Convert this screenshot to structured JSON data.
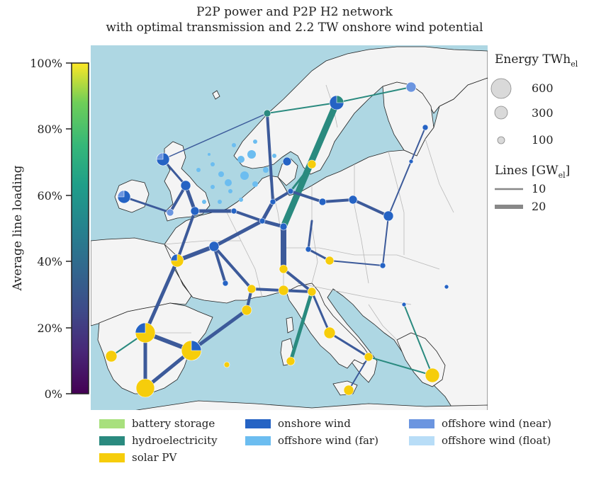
{
  "title": {
    "line1": "P2P power and P2P H2 network",
    "line2": "with optimal transmission and 2.2 TW onshore wind potential"
  },
  "colorbar": {
    "label": "Average line loading",
    "ticks": [
      "0%",
      "20%",
      "40%",
      "60%",
      "80%",
      "100%"
    ],
    "colormap": "viridis"
  },
  "size_legend": {
    "title": "Energy TWh",
    "title_sub": "el",
    "entries": [
      "600",
      "300",
      "100"
    ]
  },
  "lines_legend": {
    "title": "Lines [GW",
    "title_sub": "el",
    "title_end": "]",
    "entries": [
      "10",
      "20"
    ]
  },
  "tech_legend": [
    {
      "label": "battery storage",
      "color": "#a8e07d"
    },
    {
      "label": "onshore wind",
      "color": "#2563c4"
    },
    {
      "label": "offshore wind (near)",
      "color": "#6b95e0"
    },
    {
      "label": "hydroelectricity",
      "color": "#2a8a7f"
    },
    {
      "label": "offshore wind (far)",
      "color": "#6cbdf0"
    },
    {
      "label": "offshore wind (float)",
      "color": "#b8ddf7"
    },
    {
      "label": "solar PV",
      "color": "#f6cd0b"
    }
  ],
  "colors": {
    "sea": "#aed7e3",
    "land": "#f4f4f4",
    "border": "#b8b8b8"
  }
}
